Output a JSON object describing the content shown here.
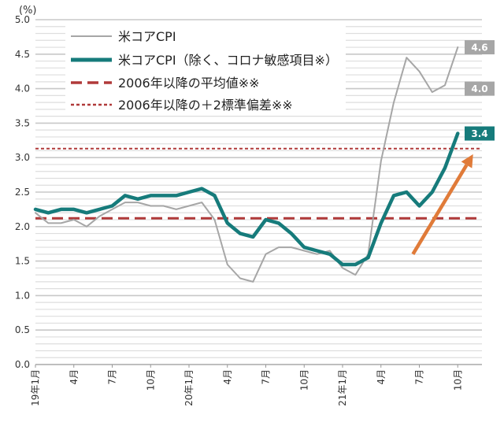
{
  "chart_data": {
    "type": "line",
    "unit_label": "(%)",
    "ylim": [
      0.0,
      5.0
    ],
    "y_ticks": [
      "0.0",
      "0.5",
      "1.0",
      "1.5",
      "2.0",
      "2.5",
      "3.0",
      "3.5",
      "4.0",
      "4.5",
      "5.0"
    ],
    "x_tick_labels": [
      {
        "i": 0,
        "label": "19年1月"
      },
      {
        "i": 3,
        "label": "4月"
      },
      {
        "i": 6,
        "label": "7月"
      },
      {
        "i": 9,
        "label": "10月"
      },
      {
        "i": 12,
        "label": "20年1月"
      },
      {
        "i": 15,
        "label": "4月"
      },
      {
        "i": 18,
        "label": "7月"
      },
      {
        "i": 21,
        "label": "10月"
      },
      {
        "i": 24,
        "label": "21年1月"
      },
      {
        "i": 27,
        "label": "4月"
      },
      {
        "i": 30,
        "label": "7月"
      },
      {
        "i": 33,
        "label": "10月"
      }
    ],
    "grid": true,
    "legend_position": "top-left",
    "series": [
      {
        "name": "米コアCPI",
        "color": "#a6a6a6",
        "style": "solid",
        "values": [
          2.2,
          2.05,
          2.05,
          2.1,
          2.0,
          2.15,
          2.25,
          2.35,
          2.35,
          2.3,
          2.3,
          2.25,
          2.3,
          2.35,
          2.1,
          1.45,
          1.25,
          1.2,
          1.6,
          1.7,
          1.7,
          1.65,
          1.6,
          1.65,
          1.4,
          1.3,
          1.6,
          2.95,
          3.8,
          4.45,
          4.25,
          3.95,
          4.05,
          4.6
        ]
      },
      {
        "name": "米コアCPI（除く、コロナ敏感項目※）",
        "color": "#167b7b",
        "style": "solid-thick",
        "values": [
          2.25,
          2.2,
          2.25,
          2.25,
          2.2,
          2.25,
          2.3,
          2.45,
          2.4,
          2.45,
          2.45,
          2.45,
          2.5,
          2.55,
          2.45,
          2.05,
          1.9,
          1.85,
          2.1,
          2.05,
          1.9,
          1.7,
          1.65,
          1.6,
          1.45,
          1.45,
          1.55,
          2.05,
          2.45,
          2.5,
          2.3,
          2.5,
          2.85,
          3.35
        ]
      },
      {
        "name": "2006年以降の平均値※※",
        "color": "#b03a3a",
        "style": "dash",
        "value": 2.12
      },
      {
        "name": "2006年以降の＋2標準偏差※※",
        "color": "#b03a3a",
        "style": "dot",
        "value": 3.13
      }
    ],
    "callouts": [
      {
        "label": "4.6",
        "series": 0,
        "i": 33,
        "value": 4.6,
        "color": "#a6a6a6"
      },
      {
        "label": "4.0",
        "series": 0,
        "i": 32,
        "value": 4.0,
        "color": "#a6a6a6"
      },
      {
        "label": "3.4",
        "series": 1,
        "i": 33,
        "value": 3.35,
        "color": "#167b7b"
      }
    ],
    "arrow": {
      "from": [
        29.5,
        1.6
      ],
      "to": [
        34.2,
        3.05
      ],
      "color": "#e07b39"
    }
  }
}
